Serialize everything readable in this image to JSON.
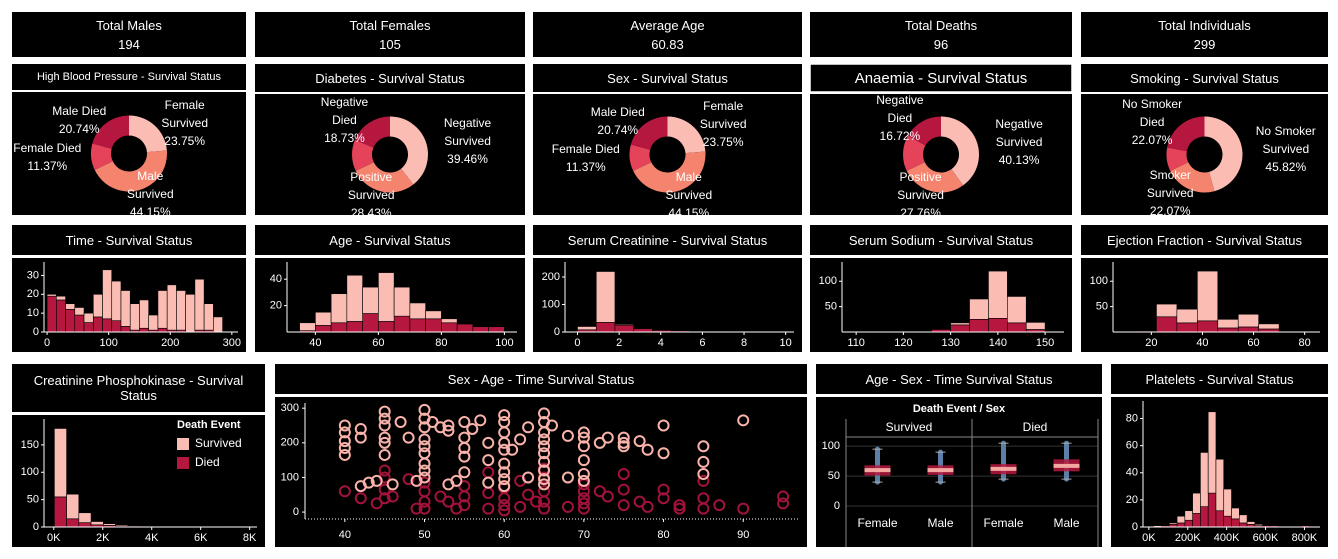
{
  "kpis": [
    {
      "label": "Total Males",
      "value": 194
    },
    {
      "label": "Total Females",
      "value": 105
    },
    {
      "label": "Average Age",
      "value": 60.83
    },
    {
      "label": "Total Deaths",
      "value": 96
    },
    {
      "label": "Total Individuals",
      "value": 299
    }
  ],
  "chart_data": [
    {
      "type": "pie",
      "title": "High Blood Pressure - Survival Status",
      "categories": [
        "Female Survived",
        "Male Survived",
        "Female Died",
        "Male Died"
      ],
      "values": [
        23.75,
        44.15,
        11.37,
        20.74
      ],
      "value_labels": [
        "23.75%",
        "44.15%",
        "11.37%",
        "20.74%"
      ],
      "colors": [
        "#fbbcb3",
        "#f5846f",
        "#e5435a",
        "#b5173f"
      ]
    },
    {
      "type": "pie",
      "title": "Diabetes - Survival Status",
      "categories": [
        "Negative Survived",
        "Positive Survived",
        null,
        "Negative Died"
      ],
      "values": [
        39.46,
        28.43,
        13.38,
        18.73
      ],
      "value_labels": [
        "39.46%",
        "28.43%",
        null,
        "18.73%"
      ],
      "colors": [
        "#fbbcb3",
        "#f5846f",
        "#e5435a",
        "#b5173f"
      ]
    },
    {
      "type": "pie",
      "title": "Sex - Survival Status",
      "categories": [
        "Female Survived",
        "Male Survived",
        "Female Died",
        "Male Died"
      ],
      "values": [
        23.75,
        44.15,
        11.37,
        20.74
      ],
      "value_labels": [
        "23.75%",
        "44.15%",
        "11.37%",
        "20.74%"
      ],
      "colors": [
        "#fbbcb3",
        "#f5846f",
        "#e5435a",
        "#b5173f"
      ]
    },
    {
      "type": "pie",
      "title": "Anaemia - Survival Status",
      "categories": [
        "Negative Survived",
        "Positive Survived",
        null,
        "Negative Died"
      ],
      "values": [
        40.13,
        27.76,
        15.39,
        16.72
      ],
      "value_labels": [
        "40.13%",
        "27.76%",
        null,
        "16.72%"
      ],
      "colors": [
        "#fbbcb3",
        "#f5846f",
        "#e5435a",
        "#b5173f"
      ]
    },
    {
      "type": "pie",
      "title": "Smoking - Survival Status",
      "categories": [
        "No Smoker Survived",
        "Smoker Survived",
        null,
        "No Smoker Died"
      ],
      "values": [
        45.82,
        22.07,
        10.04,
        22.07
      ],
      "value_labels": [
        "45.82%",
        "22.07%",
        null,
        "22.07%"
      ],
      "colors": [
        "#fbbcb3",
        "#f5846f",
        "#e5435a",
        "#b5173f"
      ]
    },
    {
      "type": "histogram",
      "title": "Time - Survival Status",
      "bins": [
        0,
        15,
        30,
        45,
        60,
        75,
        90,
        105,
        120,
        135,
        150,
        165,
        180,
        195,
        210,
        225,
        240,
        255,
        270,
        285
      ],
      "series": [
        {
          "color": "#b5173f",
          "values": [
            19,
            17,
            12,
            9,
            5,
            8,
            7,
            6,
            3,
            1,
            2,
            1,
            2,
            1,
            1,
            0,
            1,
            1,
            0
          ]
        },
        {
          "color": "#fbbcb3",
          "values": [
            1,
            2,
            3,
            4,
            5,
            12,
            26,
            21,
            19,
            14,
            15,
            8,
            20,
            24,
            21,
            20,
            27,
            14,
            8
          ]
        }
      ],
      "xlim": [
        -5,
        310
      ],
      "xticks": [
        0,
        100,
        200,
        300
      ],
      "ylim": [
        0,
        35
      ],
      "yticks": [
        0,
        10,
        20,
        30
      ]
    },
    {
      "type": "histogram",
      "title": "Age - Survival Status",
      "bins": [
        35,
        40,
        45,
        50,
        55,
        60,
        65,
        70,
        75,
        80,
        85,
        90,
        95,
        100
      ],
      "series": [
        {
          "color": "#b5173f",
          "values": [
            1,
            5,
            7,
            8,
            14,
            8,
            12,
            10,
            10,
            7,
            6,
            4,
            4
          ]
        },
        {
          "color": "#fbbcb3",
          "values": [
            6,
            10,
            22,
            35,
            20,
            37,
            22,
            12,
            6,
            3,
            0,
            0,
            0
          ]
        }
      ],
      "xlim": [
        31,
        104
      ],
      "xticks": [
        40,
        60,
        80,
        100
      ],
      "ylim": [
        0,
        50
      ],
      "yticks": [
        20,
        40
      ]
    },
    {
      "type": "histogram",
      "title": "Serum Creatinine - Survival Status",
      "bins": [
        0,
        0.9,
        1.8,
        2.7,
        3.6,
        4.5,
        5.4,
        6.3,
        7.2,
        8.1,
        9,
        9.9
      ],
      "series": [
        {
          "color": "#b5173f",
          "values": [
            8,
            35,
            25,
            12,
            6,
            4,
            2,
            1,
            1,
            0,
            2
          ]
        },
        {
          "color": "#fbbcb3",
          "values": [
            12,
            185,
            3,
            1,
            0,
            0,
            0,
            1,
            0,
            0,
            1
          ]
        }
      ],
      "xlim": [
        -0.6,
        10.4
      ],
      "xticks": [
        0,
        2,
        4,
        6,
        8,
        10
      ],
      "ylim": [
        0,
        240
      ],
      "yticks": [
        0,
        100,
        200
      ]
    },
    {
      "type": "histogram",
      "title": "Serum Sodium - Survival Status",
      "bins": [
        114,
        118,
        122,
        126,
        130,
        134,
        138,
        142,
        146,
        150
      ],
      "series": [
        {
          "color": "#b5173f",
          "values": [
            1,
            0,
            1,
            5,
            14,
            25,
            27,
            18,
            5
          ]
        },
        {
          "color": "#fbbcb3",
          "values": [
            0,
            0,
            0,
            0,
            4,
            40,
            93,
            52,
            14
          ]
        }
      ],
      "xlim": [
        107,
        154
      ],
      "xticks": [
        110,
        120,
        130,
        140,
        150
      ],
      "ylim": [
        0,
        130
      ],
      "yticks": [
        50,
        100
      ]
    },
    {
      "type": "histogram",
      "title": "Ejection Fraction - Survival Status",
      "bins": [
        14,
        22,
        30,
        38,
        46,
        54,
        62,
        70
      ],
      "series": [
        {
          "color": "#b5173f",
          "values": [
            2,
            30,
            18,
            22,
            8,
            10,
            6
          ]
        },
        {
          "color": "#fbbcb3",
          "values": [
            1,
            25,
            27,
            98,
            17,
            25,
            10
          ]
        }
      ],
      "xlim": [
        5,
        86
      ],
      "xticks": [
        20,
        40,
        60,
        80
      ],
      "ylim": [
        0,
        130
      ],
      "yticks": [
        50,
        100
      ]
    },
    {
      "type": "histogram",
      "title": "Creatinine Phosphokinase - Survival Status",
      "legend_title": "Death Event",
      "bins": [
        23,
        523,
        1023,
        1523,
        2023,
        2523,
        3023,
        3523,
        4023,
        4523,
        5023,
        5523,
        6023,
        6523,
        7023,
        7523,
        8023
      ],
      "series": [
        {
          "name": "Died",
          "color": "#b5173f",
          "values": [
            55,
            15,
            8,
            4,
            3,
            2,
            2,
            1,
            1,
            0,
            1,
            1,
            1,
            0,
            1,
            1
          ]
        },
        {
          "name": "Survived",
          "color": "#fbbcb3",
          "values": [
            125,
            45,
            18,
            6,
            3,
            2,
            1,
            1,
            0,
            1,
            0,
            0,
            1,
            0,
            0,
            0
          ]
        }
      ],
      "xlim": [
        -400,
        8300
      ],
      "xticks": [
        {
          "value": 0,
          "label": "0K"
        },
        {
          "value": 2000,
          "label": "2K"
        },
        {
          "value": 4000,
          "label": "4K"
        },
        {
          "value": 6000,
          "label": "6K"
        },
        {
          "value": 8000,
          "label": "8K"
        }
      ],
      "ylim": [
        0,
        190
      ],
      "yticks": [
        0,
        50,
        100,
        150
      ]
    },
    {
      "type": "scatter",
      "title": "Sex - Age - Time Survival Status",
      "series": [
        {
          "color": "#a3123a",
          "x": [
            45,
            45,
            45,
            45,
            46,
            48,
            49,
            50,
            50,
            50,
            50,
            52,
            53,
            54,
            55,
            55,
            55,
            58,
            58,
            58,
            60,
            60,
            60,
            60,
            62,
            62,
            63,
            64,
            65,
            65,
            65,
            65,
            65,
            68,
            70,
            70,
            70,
            70,
            70,
            72,
            73,
            75,
            75,
            75,
            77,
            78,
            80,
            80,
            82,
            82,
            85,
            85,
            85,
            87,
            90,
            95,
            95,
            40,
            42,
            44
          ],
          "values": [
            120,
            100,
            65,
            40,
            45,
            95,
            10,
            85,
            60,
            30,
            10,
            45,
            30,
            10,
            75,
            45,
            20,
            115,
            55,
            10,
            70,
            40,
            20,
            5,
            90,
            15,
            50,
            30,
            125,
            100,
            60,
            30,
            10,
            15,
            80,
            60,
            40,
            25,
            10,
            60,
            45,
            110,
            65,
            20,
            30,
            15,
            65,
            40,
            20,
            10,
            90,
            40,
            10,
            20,
            10,
            45,
            25,
            60,
            40,
            25
          ]
        },
        {
          "color": "#f9b3aa",
          "x": [
            40,
            40,
            40,
            40,
            40,
            42,
            42,
            45,
            45,
            45,
            45,
            45,
            45,
            47,
            48,
            50,
            50,
            50,
            50,
            50,
            50,
            50,
            50,
            50,
            51,
            52,
            53,
            53,
            55,
            55,
            55,
            55,
            55,
            56,
            57,
            58,
            58,
            60,
            60,
            60,
            60,
            60,
            60,
            60,
            60,
            61,
            62,
            63,
            63,
            65,
            65,
            65,
            65,
            65,
            65,
            65,
            65,
            65,
            65,
            66,
            68,
            68,
            70,
            70,
            70,
            70,
            70,
            70,
            72,
            73,
            75,
            75,
            75,
            77,
            78,
            80,
            80,
            85,
            85,
            85,
            90,
            42,
            43,
            44,
            46,
            49,
            53,
            54,
            58,
            60
          ],
          "values": [
            250,
            230,
            205,
            185,
            165,
            215,
            240,
            290,
            270,
            250,
            215,
            200,
            165,
            260,
            215,
            295,
            270,
            245,
            210,
            190,
            170,
            140,
            120,
            100,
            260,
            245,
            235,
            250,
            260,
            215,
            185,
            160,
            115,
            240,
            265,
            200,
            150,
            280,
            260,
            230,
            200,
            180,
            140,
            115,
            95,
            180,
            210,
            245,
            100,
            285,
            260,
            230,
            210,
            190,
            170,
            145,
            120,
            95,
            80,
            250,
            220,
            100,
            230,
            215,
            190,
            150,
            110,
            90,
            200,
            215,
            215,
            200,
            190,
            205,
            180,
            170,
            250,
            190,
            145,
            110,
            265,
            75,
            85,
            90,
            80,
            90,
            80,
            90,
            85,
            75
          ]
        }
      ],
      "xlim": [
        35,
        97
      ],
      "xticks": [
        40,
        50,
        60,
        70,
        80,
        90
      ],
      "ylim": [
        -20,
        315
      ],
      "yticks": [
        0,
        100,
        200,
        300
      ]
    },
    {
      "type": "box",
      "title": "Age - Sex - Time Survival Status",
      "header": "Death Event  /  Sex",
      "groups": [
        {
          "name": "Survived",
          "boxes": [
            {
              "category": "Female",
              "whisker_low": 40,
              "q1": 51,
              "median": 60,
              "q3": 68,
              "whisker_high": 95
            },
            {
              "category": "Male",
              "whisker_low": 40,
              "q1": 52,
              "median": 60,
              "q3": 68,
              "whisker_high": 90
            }
          ]
        },
        {
          "name": "Died",
          "boxes": [
            {
              "category": "Female",
              "whisker_low": 45,
              "q1": 53,
              "median": 62,
              "q3": 70,
              "whisker_high": 105
            },
            {
              "category": "Male",
              "whisker_low": 45,
              "q1": 58,
              "median": 67,
              "q3": 78,
              "whisker_high": 105
            }
          ]
        }
      ],
      "ylim": [
        -15,
        112
      ],
      "yticks": [
        0,
        50,
        100
      ]
    },
    {
      "type": "histogram",
      "title": "Platelets - Survival Status",
      "bins": [
        25100,
        65100,
        105100,
        145100,
        185100,
        225100,
        265100,
        305100,
        345100,
        385100,
        425100,
        465100,
        505100,
        545100,
        585100,
        625100,
        665100,
        705100,
        745100,
        785100,
        825100
      ],
      "series": [
        {
          "color": "#b5173f",
          "values": [
            0,
            1,
            2,
            3,
            5,
            10,
            15,
            25,
            12,
            8,
            6,
            3,
            2,
            1,
            1,
            1,
            0,
            0,
            0,
            1
          ]
        },
        {
          "color": "#fbbcb3",
          "values": [
            1,
            0,
            1,
            5,
            7,
            15,
            40,
            60,
            38,
            20,
            8,
            6,
            2,
            1,
            0,
            0,
            0,
            0,
            0,
            0
          ]
        }
      ],
      "xlim": [
        -30000,
        880000
      ],
      "xticks": [
        {
          "value": 0,
          "label": "0K"
        },
        {
          "value": 200000,
          "label": "200K"
        },
        {
          "value": 400000,
          "label": "400K"
        },
        {
          "value": 600000,
          "label": "600K"
        },
        {
          "value": 800000,
          "label": "800K"
        }
      ],
      "ylim": [
        0,
        90
      ],
      "yticks": [
        0,
        20,
        40,
        60,
        80
      ]
    }
  ]
}
